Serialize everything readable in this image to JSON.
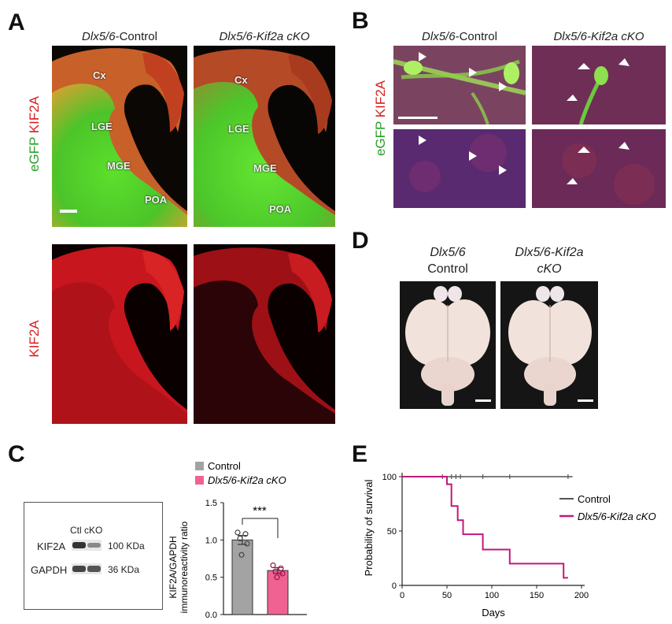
{
  "panels": {
    "A": "A",
    "B": "B",
    "C": "C",
    "D": "D",
    "E": "E"
  },
  "panel_a": {
    "col_control_prefix": "Dlx5/6",
    "col_control_suffix": "-Control",
    "col_cko": "Dlx5/6-Kif2a cKO",
    "row1_label_green": "eGFP",
    "row1_label_red": "KIF2A",
    "row2_label": "KIF2A",
    "regions": {
      "cx": "Cx",
      "lge": "LGE",
      "mge": "MGE",
      "poa": "POA"
    }
  },
  "panel_b": {
    "col_control_prefix": "Dlx5/6",
    "col_control_suffix": "-Control",
    "col_cko": "Dlx5/6-Kif2a cKO",
    "row_label_green": "eGFP",
    "row_label_red": "KIF2A"
  },
  "panel_d": {
    "control_line1": "Dlx5/6",
    "control_line2": "Control",
    "cko_line1": "Dlx5/6-Kif2a",
    "cko_line2": "cKO"
  },
  "panel_c": {
    "blot": {
      "lanes": "Ctl cKO",
      "rows": [
        {
          "protein": "KIF2A",
          "size": "100 KDa"
        },
        {
          "protein": "GAPDH",
          "size": "36 KDa"
        }
      ]
    },
    "legend": [
      "Control",
      "Dlx5/6-Kif2a cKO"
    ],
    "significance": "***",
    "colors": {
      "control": "#a3a3a3",
      "cko": "#f06292"
    }
  },
  "panel_e": {
    "legend": [
      "Control",
      "Dlx5/6-Kif2a cKO"
    ],
    "colors": {
      "control": "#555555",
      "cko": "#c2187a"
    }
  },
  "chart_data": [
    {
      "type": "bar",
      "categories": [
        "Control",
        "Dlx5/6-Kif2a cKO"
      ],
      "values": [
        1.0,
        0.59
      ],
      "errors": [
        0.06,
        0.04
      ],
      "points": [
        [
          1.1,
          1.08,
          1.02,
          0.95,
          0.8
        ],
        [
          0.66,
          0.62,
          0.58,
          0.55,
          0.5
        ]
      ],
      "ylabel": "KIF2A/GAPDH immunoreactivity ratio",
      "ylabel_line1": "KIF2A/GAPDH",
      "ylabel_line2": "immunoreactivity ratio",
      "ylim": [
        0,
        1.5
      ],
      "yticks": [
        "0.0",
        "0.5",
        "1.0",
        "1.5"
      ],
      "ytick_values": [
        0,
        0.5,
        1.0,
        1.5
      ]
    },
    {
      "type": "line",
      "step": true,
      "xlabel": "Days",
      "ylabel": "Probability of survival",
      "xlim": [
        0,
        200
      ],
      "ylim": [
        0,
        100
      ],
      "xticks": [
        "0",
        "50",
        "100",
        "150",
        "200"
      ],
      "xtick_values": [
        0,
        50,
        100,
        150,
        200
      ],
      "yticks": [
        "0",
        "50",
        "100"
      ],
      "ytick_values": [
        0,
        50,
        100
      ],
      "series": [
        {
          "name": "Control",
          "x": [
            0,
            190
          ],
          "y": [
            100,
            100
          ],
          "censored": [
            45,
            55,
            60,
            65,
            90,
            120,
            185
          ]
        },
        {
          "name": "Dlx5/6-Kif2a cKO",
          "x": [
            0,
            45,
            50,
            55,
            62,
            68,
            90,
            120,
            180,
            185
          ],
          "y": [
            100,
            100,
            93,
            73,
            60,
            47,
            33,
            20,
            7,
            7
          ]
        }
      ]
    }
  ]
}
